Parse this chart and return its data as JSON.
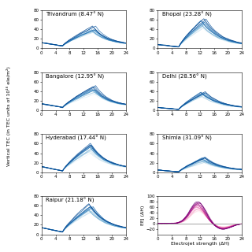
{
  "locations": [
    {
      "name": "Trivandrum (8.47° N)",
      "row": 0,
      "col": 0,
      "peak_hour": 15,
      "peak_amp": 45,
      "night_base": 12,
      "morning_min": 5,
      "color": "blue"
    },
    {
      "name": "Bhopal (23.28° N)",
      "row": 0,
      "col": 1,
      "peak_hour": 13,
      "peak_amp": 60,
      "night_base": 8,
      "morning_min": 3,
      "color": "blue"
    },
    {
      "name": "Bangalore (12.95° N)",
      "row": 1,
      "col": 0,
      "peak_hour": 15,
      "peak_amp": 50,
      "night_base": 14,
      "morning_min": 6,
      "color": "blue"
    },
    {
      "name": "Delhi (28.56° N)",
      "row": 1,
      "col": 1,
      "peak_hour": 13,
      "peak_amp": 40,
      "night_base": 6,
      "morning_min": 2,
      "color": "blue"
    },
    {
      "name": "Hyderabad (17.44° N)",
      "row": 2,
      "col": 0,
      "peak_hour": 14,
      "peak_amp": 60,
      "night_base": 12,
      "morning_min": 3,
      "color": "blue"
    },
    {
      "name": "Shimla (31.09° N)",
      "row": 2,
      "col": 1,
      "peak_hour": 13,
      "peak_amp": 32,
      "night_base": 5,
      "morning_min": 1,
      "color": "blue"
    },
    {
      "name": "Raipur (21.18° N)",
      "row": 3,
      "col": 0,
      "peak_hour": 14,
      "peak_amp": 62,
      "night_base": 14,
      "morning_min": 5,
      "color": "blue"
    }
  ],
  "eej_panel": {
    "row": 3,
    "col": 1,
    "xlabel": "Electrojet strength (ΔH)",
    "ylabel": "EEJ (ΔH)",
    "peak_hour": 11.5,
    "peak_amp": 80,
    "neg_hour": 18.5,
    "neg_amp": -22,
    "ylim": [
      -40,
      100
    ],
    "yticks": [
      -20,
      0,
      20,
      40,
      60,
      80,
      100
    ]
  },
  "n_curves": 14,
  "xlim": [
    0,
    24
  ],
  "xticks": [
    0,
    4,
    8,
    12,
    16,
    20,
    24
  ],
  "ylim_tec": [
    0,
    80
  ],
  "yticks_tec": [
    0,
    20,
    40,
    60,
    80
  ],
  "ylabel": "Vertical TEC (in TEC units of 10¹⁶ ele/m²)",
  "title_fontsize": 5.0,
  "label_fontsize": 4.5,
  "tick_fontsize": 4.0
}
